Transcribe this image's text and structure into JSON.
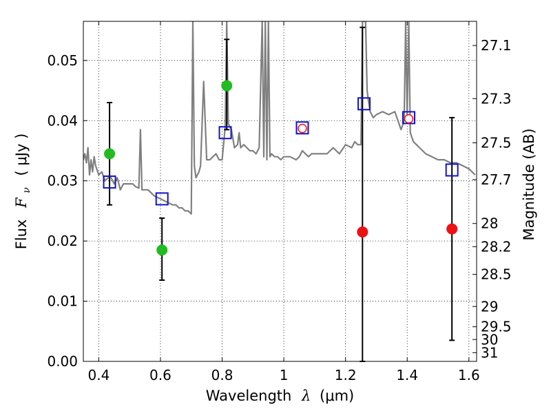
{
  "chart_data": {
    "type": "scatter",
    "xlabel": "Wavelength  λ (μm)",
    "ylabel": "Flux  F_ν  ( μJy )",
    "ylabel_parts": {
      "prefix": "Flux",
      "sym": "F",
      "sub": "ν",
      "unit": "( μJy )"
    },
    "xlabel_parts": {
      "prefix": "Wavelength",
      "sym": "λ",
      "unit": "(μm)"
    },
    "y2label": "Magnitude (AB)",
    "xlim": [
      0.35,
      1.625
    ],
    "ylim": [
      0.0,
      0.0565
    ],
    "x_ticks": [
      0.4,
      0.6,
      0.8,
      1.0,
      1.2,
      1.4,
      1.6
    ],
    "x_tick_labels": [
      "0.4",
      "0.6",
      "0.8",
      "1",
      "1.2",
      "1.4",
      "1.6"
    ],
    "y_ticks": [
      0.0,
      0.01,
      0.02,
      0.03,
      0.04,
      0.05
    ],
    "y_tick_labels": [
      "0.00",
      "0.01",
      "0.02",
      "0.03",
      "0.04",
      "0.05"
    ],
    "y2_ticks": [
      {
        "label": "27.1",
        "value": 27.1
      },
      {
        "label": "27.3",
        "value": 27.3
      },
      {
        "label": "27.5",
        "value": 27.5
      },
      {
        "label": "27.7",
        "value": 27.7
      },
      {
        "label": "28",
        "value": 28.0
      },
      {
        "label": "28.2",
        "value": 28.2
      },
      {
        "label": "28.5",
        "value": 28.5
      },
      {
        "label": "29",
        "value": 29.0
      },
      {
        "label": "29.5",
        "value": 29.5
      },
      {
        "label": "30",
        "value": 30.0
      },
      {
        "label": "31",
        "value": 31.0
      }
    ],
    "grid": true,
    "colors": {
      "model": "#808080",
      "green": "#22bb22",
      "red": "#ee1111",
      "blue": "#1111cc",
      "errorbar": "#000000"
    },
    "series": [
      {
        "kind": "model_spectrum",
        "x": [
          0.35,
          0.355,
          0.36,
          0.365,
          0.37,
          0.375,
          0.38,
          0.385,
          0.39,
          0.4,
          0.41,
          0.42,
          0.43,
          0.44,
          0.45,
          0.46,
          0.47,
          0.48,
          0.49,
          0.5,
          0.51,
          0.52,
          0.53,
          0.535,
          0.54,
          0.55,
          0.56,
          0.57,
          0.58,
          0.6,
          0.62,
          0.64,
          0.65,
          0.66,
          0.67,
          0.68,
          0.69,
          0.7,
          0.705,
          0.71,
          0.715,
          0.72,
          0.725,
          0.73,
          0.74,
          0.75,
          0.76,
          0.77,
          0.78,
          0.79,
          0.8,
          0.81,
          0.815,
          0.82,
          0.83,
          0.84,
          0.85,
          0.855,
          0.86,
          0.87,
          0.88,
          0.89,
          0.9,
          0.91,
          0.92,
          0.93,
          0.935,
          0.94,
          0.945,
          0.95,
          0.955,
          0.96,
          0.97,
          0.98,
          0.99,
          1.0,
          1.02,
          1.04,
          1.05,
          1.06,
          1.07,
          1.08,
          1.09,
          1.1,
          1.12,
          1.14,
          1.16,
          1.18,
          1.2,
          1.22,
          1.23,
          1.24,
          1.25,
          1.255,
          1.26,
          1.265,
          1.27,
          1.275,
          1.28,
          1.29,
          1.3,
          1.32,
          1.34,
          1.36,
          1.38,
          1.39,
          1.395,
          1.4,
          1.405,
          1.41,
          1.42,
          1.43,
          1.44,
          1.46,
          1.48,
          1.5,
          1.52,
          1.54,
          1.56,
          1.58,
          1.6,
          1.62
        ],
        "y": [
          0.0335,
          0.0345,
          0.033,
          0.0355,
          0.031,
          0.0335,
          0.0315,
          0.034,
          0.0325,
          0.031,
          0.0315,
          0.03,
          0.0305,
          0.0305,
          0.0295,
          0.0305,
          0.0285,
          0.0295,
          0.0295,
          0.0295,
          0.0295,
          0.029,
          0.0288,
          0.0385,
          0.0285,
          0.0285,
          0.0285,
          0.028,
          0.0275,
          0.027,
          0.0265,
          0.026,
          0.026,
          0.0255,
          0.0255,
          0.025,
          0.025,
          0.0245,
          0.0565,
          0.0325,
          0.0305,
          0.031,
          0.0315,
          0.0325,
          0.0465,
          0.0335,
          0.0335,
          0.034,
          0.0345,
          0.0335,
          0.0335,
          0.039,
          0.0565,
          0.0395,
          0.0385,
          0.0355,
          0.036,
          0.038,
          0.0355,
          0.036,
          0.0355,
          0.035,
          0.035,
          0.0345,
          0.0355,
          0.0565,
          0.034,
          0.0565,
          0.0335,
          0.0565,
          0.034,
          0.0345,
          0.034,
          0.034,
          0.0335,
          0.034,
          0.034,
          0.0335,
          0.034,
          0.035,
          0.0345,
          0.034,
          0.0345,
          0.0345,
          0.0345,
          0.0345,
          0.0355,
          0.0345,
          0.036,
          0.0355,
          0.0365,
          0.036,
          0.036,
          0.0565,
          0.0565,
          0.0565,
          0.045,
          0.043,
          0.0415,
          0.0405,
          0.041,
          0.0415,
          0.041,
          0.0415,
          0.0385,
          0.04,
          0.0565,
          0.0405,
          0.0565,
          0.038,
          0.0365,
          0.036,
          0.0355,
          0.0345,
          0.034,
          0.0335,
          0.0335,
          0.033,
          0.033,
          0.0325,
          0.032,
          0.031
        ]
      },
      {
        "kind": "observed_green",
        "points": [
          {
            "x": 0.435,
            "y": 0.0345,
            "err_lo": 0.026,
            "err_hi": 0.043
          },
          {
            "x": 0.605,
            "y": 0.0185,
            "err_lo": 0.0135,
            "err_hi": 0.0238
          },
          {
            "x": 0.815,
            "y": 0.0458,
            "err_lo": 0.0385,
            "err_hi": 0.0535
          }
        ]
      },
      {
        "kind": "observed_red",
        "points": [
          {
            "x": 1.06,
            "y": 0.0387
          },
          {
            "x": 1.255,
            "y": 0.0215,
            "err_lo": 0.0,
            "err_hi": 0.0555
          },
          {
            "x": 1.405,
            "y": 0.0403
          },
          {
            "x": 1.545,
            "y": 0.022,
            "err_lo": 0.0035,
            "err_hi": 0.0405
          }
        ]
      },
      {
        "kind": "model_synthetic_squares",
        "points": [
          {
            "x": 0.435,
            "y": 0.0298
          },
          {
            "x": 0.605,
            "y": 0.027
          },
          {
            "x": 0.81,
            "y": 0.038
          },
          {
            "x": 1.06,
            "y": 0.0388
          },
          {
            "x": 1.26,
            "y": 0.0428
          },
          {
            "x": 1.405,
            "y": 0.0405
          },
          {
            "x": 1.545,
            "y": 0.0318
          }
        ]
      }
    ]
  }
}
